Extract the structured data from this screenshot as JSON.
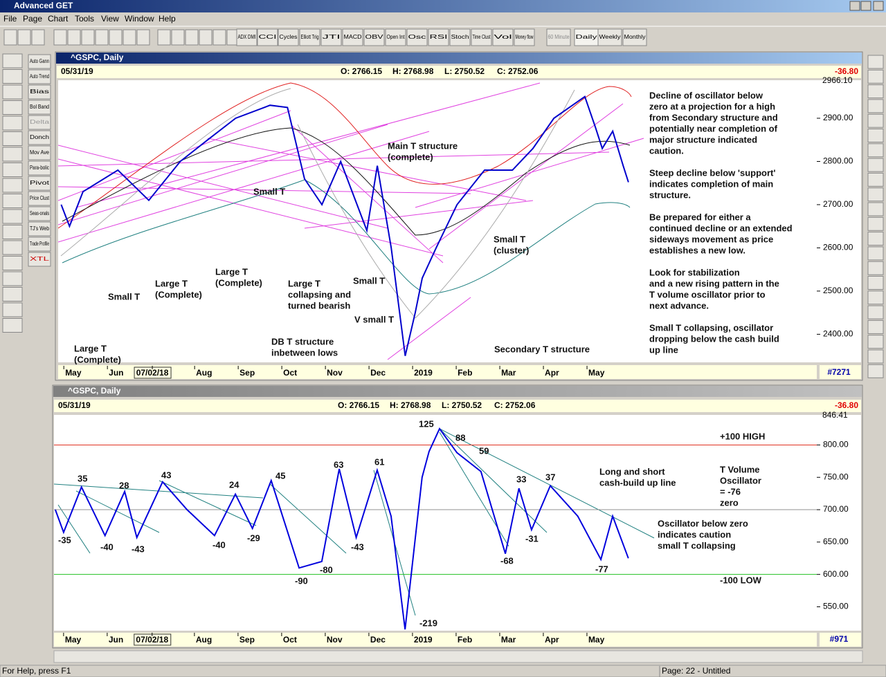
{
  "window": {
    "title": "Advanced GET"
  },
  "menu": [
    "File",
    "Page",
    "Chart",
    "Tools",
    "View",
    "Window",
    "Help"
  ],
  "toolbar": [
    "ADX DMI",
    "CCI",
    "Cycles",
    "Elliott Trig",
    "JTI",
    "MACD",
    "OBV",
    "Open Int",
    "Osc",
    "RSI",
    "Stoch",
    "Time Clust",
    "Vol",
    "Money flow",
    "60 Minute",
    "Daily",
    "Weekly",
    "Monthly"
  ],
  "left_tools": [
    "Auto Gann",
    "Auto Trend",
    "Bias",
    "Bol Band",
    "Delta",
    "Donch",
    "Mov Ave",
    "Para-bolic",
    "Pivot",
    "Price Clust",
    "Seas-onals",
    "TJ's Web",
    "Trade Profile",
    "XTL"
  ],
  "price_chart": {
    "type": "line",
    "title": "^GSPC, Daily",
    "date": "05/31/19",
    "info": [
      "O: 2766.15",
      "H: 2768.98",
      "L: 2750.52",
      "C: 2752.06"
    ],
    "change": "-36.80",
    "counter": "#7271",
    "axis_top_label": "2966.10",
    "xlim": [
      -0.13,
      17.27
    ],
    "xticks": [
      {
        "value": 0,
        "label": "May"
      },
      {
        "value": 1,
        "label": "Jun"
      },
      {
        "value": 2.03,
        "label": "07/02/18"
      },
      {
        "value": 3,
        "label": "Aug"
      },
      {
        "value": 4,
        "label": "Sep"
      },
      {
        "value": 5,
        "label": "Oct"
      },
      {
        "value": 6,
        "label": "Nov"
      },
      {
        "value": 7,
        "label": "Dec"
      },
      {
        "value": 8,
        "label": "2019"
      },
      {
        "value": 9,
        "label": "Feb"
      },
      {
        "value": 10,
        "label": "Mar"
      },
      {
        "value": 11,
        "label": "Apr"
      },
      {
        "value": 12,
        "label": "May"
      }
    ],
    "ylim": [
      2335,
      2988
    ],
    "yticks": [
      {
        "value": 2400,
        "label": "2400.00"
      },
      {
        "value": 2500,
        "label": "2500.00"
      },
      {
        "value": 2600,
        "label": "2600.00"
      },
      {
        "value": 2700,
        "label": "2700.00"
      },
      {
        "value": 2800,
        "label": "2800.00"
      },
      {
        "value": 2900,
        "label": "2900.00"
      }
    ],
    "series": [
      {
        "name": "^GSPC",
        "color": "#0000cc",
        "x": [
          -0.06,
          0.13,
          0.44,
          1.24,
          1.95,
          2.67,
          3.3,
          3.94,
          4.73,
          5.13,
          5.52,
          5.92,
          6.35,
          6.95,
          7.19,
          7.51,
          7.83,
          8.06,
          8.22,
          8.54,
          9.02,
          9.65,
          10.29,
          10.76,
          11.24,
          11.95,
          12.19,
          12.35,
          12.59,
          12.83,
          12.95
        ],
        "values": [
          2700,
          2650,
          2730,
          2780,
          2710,
          2800,
          2850,
          2900,
          2930,
          2925,
          2760,
          2700,
          2800,
          2640,
          2790,
          2600,
          2350,
          2450,
          2530,
          2600,
          2700,
          2780,
          2780,
          2830,
          2900,
          2950,
          2880,
          2830,
          2870,
          2790,
          2752
        ]
      }
    ],
    "annotations": [
      "Main T structure",
      "(complete)",
      "Small T",
      "Small T",
      "Large T",
      "(Complete)",
      "Large T",
      "(Complete)",
      "Large T",
      "collapsing and",
      "turned bearish",
      "Small T",
      "V small T",
      "DB T structure",
      "inbetween lows",
      "Large T",
      "(Complete)",
      "Small T",
      "(cluster)",
      "Secondary T structure"
    ],
    "commentary": [
      [
        "Decline of oscillator below",
        "zero at a projection for a high",
        "from Secondary structure and",
        "potentially near completion of",
        "major structure indicated",
        "caution."
      ],
      [
        "Steep decline below 'support'",
        "indicates completion of main",
        "structure."
      ],
      [
        "Be prepared for either a",
        "continued decline or an extended",
        "sideways movement as price",
        "establishes a new low."
      ],
      [
        "Look for stabilization",
        "and a new rising pattern in the",
        "T volume oscillator prior to",
        "next advance."
      ],
      [
        "Small T collapsing, oscillator",
        "dropping below the cash build",
        "up line"
      ]
    ]
  },
  "oscillator_chart": {
    "type": "line",
    "title": "^GSPC, Daily",
    "date": "05/31/19",
    "info": [
      "O: 2766.15",
      "H: 2768.98",
      "L: 2750.52",
      "C: 2752.06"
    ],
    "change": "-36.80",
    "counter": "#971",
    "axis_top_label": "846.41",
    "xlim": [
      -0.22,
      17.27
    ],
    "xticks": [
      {
        "value": 0,
        "label": "May"
      },
      {
        "value": 1,
        "label": "Jun"
      },
      {
        "value": 2.03,
        "label": "07/02/18"
      },
      {
        "value": 3,
        "label": "Aug"
      },
      {
        "value": 4,
        "label": "Sep"
      },
      {
        "value": 5,
        "label": "Oct"
      },
      {
        "value": 6,
        "label": "Nov"
      },
      {
        "value": 7,
        "label": "Dec"
      },
      {
        "value": 8,
        "label": "2019"
      },
      {
        "value": 9,
        "label": "Feb"
      },
      {
        "value": 10,
        "label": "Mar"
      },
      {
        "value": 11,
        "label": "Apr"
      },
      {
        "value": 12,
        "label": "May"
      }
    ],
    "ylim": [
      513.1,
      846.41
    ],
    "yticks": [
      {
        "value": 550,
        "label": "550.00"
      },
      {
        "value": 600,
        "label": "600.00"
      },
      {
        "value": 650,
        "label": "650.00"
      },
      {
        "value": 700,
        "label": "700.00"
      },
      {
        "value": 750,
        "label": "750.00"
      },
      {
        "value": 800,
        "label": "800.00"
      }
    ],
    "ref_lines": [
      {
        "value": 800,
        "color": "#e03020"
      },
      {
        "value": 700,
        "color": "#909090"
      },
      {
        "value": 600,
        "color": "#20c020"
      }
    ],
    "series": [
      {
        "name": "T Volume Oscillator",
        "color": "#0000dd",
        "x": [
          -0.19,
          0,
          0.41,
          0.95,
          1.4,
          1.68,
          2.27,
          2.83,
          3.46,
          3.94,
          4.33,
          4.76,
          5.4,
          5.92,
          6.32,
          6.71,
          7.19,
          7.51,
          7.83,
          8.22,
          8.38,
          8.62,
          9.02,
          9.57,
          10.13,
          10.44,
          10.73,
          11.16,
          11.79,
          12.32,
          12.59,
          12.95
        ],
        "values": [
          700,
          665,
          735,
          660,
          728,
          657,
          743,
          700,
          660,
          724,
          671,
          745,
          610,
          620,
          763,
          657,
          761,
          690,
          515,
          750,
          790,
          825,
          788,
          759,
          632,
          733,
          669,
          737,
          690,
          623,
          690,
          625
        ]
      }
    ],
    "point_labels": [
      "125",
      "88",
      "59",
      "35",
      "28",
      "43",
      "24",
      "45",
      "63",
      "61",
      "33",
      "37",
      "-35",
      "-40",
      "-43",
      "-40",
      "-29",
      "-90",
      "-80",
      "-43",
      "-219",
      "-68",
      "-31",
      "-77"
    ],
    "annotations": [
      "+100 HIGH",
      "T Volume",
      "Oscillator",
      "= -76",
      "zero",
      "-100 LOW",
      "Long and short",
      "cash-build up line",
      "Oscillator below zero",
      "indicates caution",
      "small T collapsing"
    ]
  },
  "status": {
    "help": "For Help, press F1",
    "page": "Page: 22 - Untitled"
  }
}
